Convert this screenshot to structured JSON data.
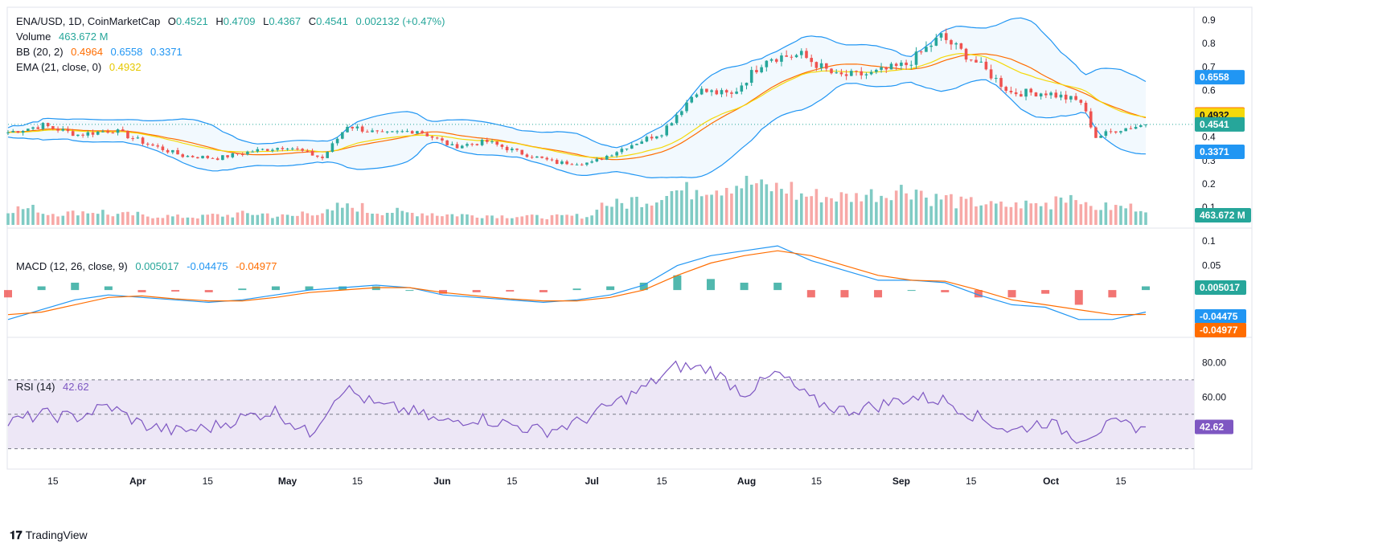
{
  "header": {
    "symbol": "ENA/USD, 1D, CoinMarketCap",
    "open_label": "O",
    "open": "0.4521",
    "high_label": "H",
    "high": "0.4709",
    "low_label": "L",
    "low": "0.4367",
    "close_label": "C",
    "close": "0.4541",
    "change": "0.002132 (+0.47%)"
  },
  "legend": {
    "volume_label": "Volume",
    "volume_value": "463.672 M",
    "bb_label": "BB (20, 2)",
    "bb_mid": "0.4964",
    "bb_upper": "0.6558",
    "bb_lower": "0.3371",
    "ema_label": "EMA (21, close, 0)",
    "ema_value": "0.4932",
    "macd_label": "MACD (12, 26, close, 9)",
    "macd_hist": "0.005017",
    "macd_line": "-0.04475",
    "macd_signal": "-0.04977",
    "rsi_label": "RSI (14)",
    "rsi_value": "42.62"
  },
  "branding": {
    "logo_text": "TradingView"
  },
  "colors": {
    "up": "#26a69a",
    "down": "#ef5350",
    "bb": "#2196f3",
    "bb_mid": "#ff6d00",
    "ema": "#f5d90a",
    "macd_line": "#2196f3",
    "macd_signal": "#ff6d00",
    "rsi": "#7e57c2",
    "rsi_band": "#ede7f6"
  },
  "chart_data": [
    {
      "type": "candlestick",
      "title": "ENA/USD, 1D, CoinMarketCap",
      "y_axis_ticks": [
        "0.9",
        "0.8",
        "0.7",
        "0.6",
        "0.5",
        "0.4",
        "0.3",
        "0.2",
        "0.1"
      ],
      "price_labels": [
        "0.6558",
        "0.4964",
        "0.4932",
        "0.4541",
        "0.3371",
        "463.672 M"
      ],
      "x_axis_ticks": [
        "15",
        "Apr",
        "15",
        "May",
        "15",
        "Jun",
        "15",
        "Jul",
        "15",
        "Aug",
        "15",
        "Sep",
        "15",
        "Oct",
        "15"
      ],
      "x_dates": [
        "2024-03-06",
        "2024-10-20"
      ],
      "price_series": [
        {
          "date": "2024-03-06",
          "close": 0.42
        },
        {
          "date": "2024-03-13",
          "close": 0.45
        },
        {
          "date": "2024-03-20",
          "close": 0.41
        },
        {
          "date": "2024-03-27",
          "close": 0.43
        },
        {
          "date": "2024-04-03",
          "close": 0.37
        },
        {
          "date": "2024-04-10",
          "close": 0.32
        },
        {
          "date": "2024-04-17",
          "close": 0.31
        },
        {
          "date": "2024-04-24",
          "close": 0.34
        },
        {
          "date": "2024-05-01",
          "close": 0.36
        },
        {
          "date": "2024-05-08",
          "close": 0.31
        },
        {
          "date": "2024-05-13",
          "close": 0.45
        },
        {
          "date": "2024-05-20",
          "close": 0.41
        },
        {
          "date": "2024-05-27",
          "close": 0.43
        },
        {
          "date": "2024-06-03",
          "close": 0.36
        },
        {
          "date": "2024-06-10",
          "close": 0.38
        },
        {
          "date": "2024-06-17",
          "close": 0.33
        },
        {
          "date": "2024-06-24",
          "close": 0.29
        },
        {
          "date": "2024-07-01",
          "close": 0.29
        },
        {
          "date": "2024-07-08",
          "close": 0.36
        },
        {
          "date": "2024-07-15",
          "close": 0.42
        },
        {
          "date": "2024-07-22",
          "close": 0.6
        },
        {
          "date": "2024-07-29",
          "close": 0.58
        },
        {
          "date": "2024-08-05",
          "close": 0.74
        },
        {
          "date": "2024-08-12",
          "close": 0.75
        },
        {
          "date": "2024-08-19",
          "close": 0.66
        },
        {
          "date": "2024-08-26",
          "close": 0.67
        },
        {
          "date": "2024-09-02",
          "close": 0.71
        },
        {
          "date": "2024-09-09",
          "close": 0.83
        },
        {
          "date": "2024-09-16",
          "close": 0.72
        },
        {
          "date": "2024-09-23",
          "close": 0.59
        },
        {
          "date": "2024-09-30",
          "close": 0.59
        },
        {
          "date": "2024-10-07",
          "close": 0.55
        },
        {
          "date": "2024-10-10",
          "close": 0.4
        },
        {
          "date": "2024-10-14",
          "close": 0.43
        },
        {
          "date": "2024-10-20",
          "close": 0.4541
        }
      ],
      "volume_series": [
        110,
        80,
        90,
        70,
        60,
        55,
        65,
        75,
        60,
        85,
        120,
        90,
        80,
        70,
        65,
        60,
        55,
        60,
        140,
        170,
        230,
        260,
        280,
        250,
        200,
        190,
        210,
        240,
        180,
        150,
        130,
        140,
        200,
        120,
        120
      ]
    },
    {
      "type": "line",
      "title": "MACD (12, 26, close, 9)",
      "y_axis_ticks": [
        "0.1",
        "0.05",
        "0.005017",
        "-0.04475",
        "-0.04977"
      ],
      "series": [
        {
          "name": "MACD",
          "values": [
            -0.06,
            -0.04,
            -0.02,
            -0.01,
            -0.015,
            -0.02,
            -0.025,
            -0.02,
            -0.01,
            0.0,
            0.005,
            0.01,
            0.005,
            -0.01,
            -0.015,
            -0.02,
            -0.025,
            -0.02,
            -0.01,
            0.01,
            0.05,
            0.07,
            0.08,
            0.09,
            0.06,
            0.04,
            0.02,
            0.02,
            0.015,
            -0.01,
            -0.03,
            -0.035,
            -0.06,
            -0.06,
            -0.04475
          ]
        },
        {
          "name": "Signal",
          "values": [
            -0.05,
            -0.045,
            -0.03,
            -0.015,
            -0.012,
            -0.018,
            -0.022,
            -0.022,
            -0.015,
            -0.005,
            0.0,
            0.005,
            0.005,
            -0.005,
            -0.012,
            -0.018,
            -0.022,
            -0.022,
            -0.015,
            0.0,
            0.03,
            0.055,
            0.07,
            0.08,
            0.07,
            0.05,
            0.03,
            0.02,
            0.018,
            0.0,
            -0.02,
            -0.03,
            -0.04,
            -0.05,
            -0.04977
          ]
        }
      ]
    },
    {
      "type": "line",
      "title": "RSI (14)",
      "y_axis_ticks": [
        "80.00",
        "60.00",
        "42.62"
      ],
      "series": [
        {
          "name": "RSI",
          "values": [
            45,
            50,
            48,
            55,
            44,
            40,
            42,
            48,
            52,
            38,
            66,
            55,
            52,
            45,
            48,
            44,
            40,
            45,
            55,
            65,
            78,
            76,
            62,
            74,
            58,
            52,
            55,
            60,
            58,
            48,
            40,
            46,
            36,
            44,
            42.62
          ]
        }
      ]
    }
  ]
}
